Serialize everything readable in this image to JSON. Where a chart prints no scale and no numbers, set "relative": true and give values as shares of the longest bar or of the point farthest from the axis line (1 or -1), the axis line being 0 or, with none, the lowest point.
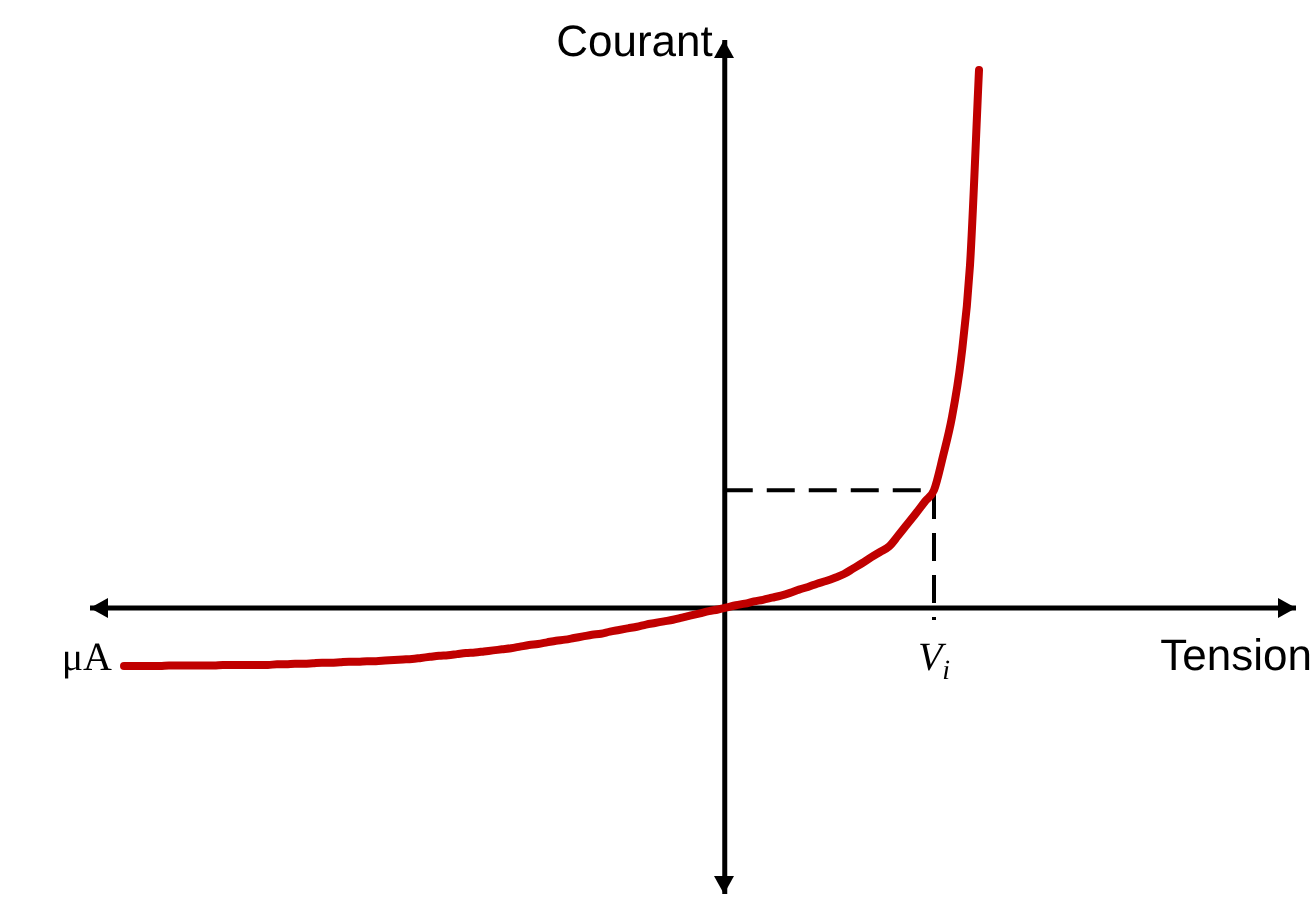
{
  "chart_data": {
    "type": "line",
    "relative": true,
    "xlabel": "Tension",
    "ylabel": "Courant",
    "marker": "none",
    "annotations": [
      "μA",
      "V$_{i}$"
    ],
    "ref_lines": [
      {
        "axis": "y",
        "value": 0.219,
        "color": "#000000",
        "line_style": "dashed"
      }
    ],
    "categories": [
      null,
      null,
      null,
      null,
      null,
      null,
      null,
      null,
      null,
      null,
      null,
      null,
      null,
      null,
      null,
      null,
      null,
      null,
      null,
      null,
      null,
      null,
      null,
      null,
      null,
      null,
      null,
      null,
      null,
      null,
      null,
      null,
      null,
      null,
      null,
      null,
      null,
      null,
      null,
      null,
      null,
      null,
      null,
      null,
      null,
      null,
      null,
      null,
      null,
      null,
      null,
      null,
      null,
      null,
      null,
      null,
      null,
      null,
      null,
      null,
      null,
      null,
      null,
      null,
      null,
      null,
      null,
      null,
      null,
      null,
      null,
      null,
      null,
      null,
      null,
      null,
      null,
      null,
      null,
      null,
      null,
      null,
      null,
      null,
      null,
      null,
      null,
      null,
      null,
      null,
      null,
      null,
      null,
      null,
      null,
      null
    ],
    "series": [
      {
        "color": "#c00000",
        "line_style": "solid",
        "values": [
          -0.108,
          -0.108,
          -0.108,
          -0.108,
          -0.108,
          -0.107,
          -0.107,
          -0.107,
          -0.107,
          -0.107,
          -0.107,
          -0.106,
          -0.106,
          -0.106,
          -0.106,
          -0.106,
          -0.106,
          -0.105,
          -0.105,
          -0.104,
          -0.104,
          -0.103,
          -0.102,
          -0.102,
          -0.101,
          -0.1,
          -0.1,
          -0.099,
          -0.099,
          -0.098,
          -0.097,
          -0.096,
          -0.095,
          -0.093,
          -0.091,
          -0.089,
          -0.088,
          -0.086,
          -0.084,
          -0.083,
          -0.081,
          -0.079,
          -0.077,
          -0.075,
          -0.072,
          -0.069,
          -0.067,
          -0.064,
          -0.061,
          -0.059,
          -0.056,
          -0.053,
          -0.05,
          -0.048,
          -0.044,
          -0.041,
          -0.038,
          -0.035,
          -0.031,
          -0.028,
          -0.025,
          -0.022,
          -0.018,
          -0.014,
          -0.01,
          -0.006,
          -0.003,
          0.001,
          0.005,
          0.008,
          0.012,
          0.015,
          0.019,
          0.023,
          0.028,
          0.034,
          0.039,
          0.045,
          0.05,
          0.056,
          0.063,
          0.073,
          0.083,
          0.094,
          0.104,
          0.114,
          0.134,
          0.155,
          0.176,
          0.198,
          0.219,
          0.282,
          0.355,
          0.462,
          0.637,
          1
        ]
      }
    ]
  }
}
